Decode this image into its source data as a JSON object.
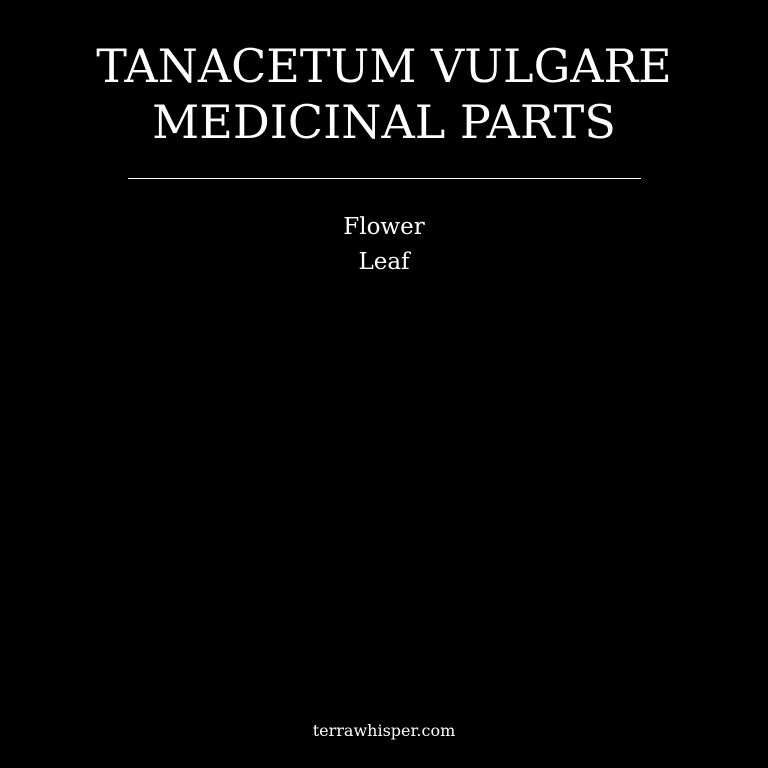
{
  "title": {
    "line1": "TANACETUM VULGARE",
    "line2": "MEDICINAL PARTS"
  },
  "parts": [
    {
      "label": "Flower"
    },
    {
      "label": "Leaf"
    }
  ],
  "footer": {
    "site": "terrawhisper.com"
  },
  "colors": {
    "background": "#000000",
    "text": "#ffffff",
    "divider": "#ffffff"
  }
}
